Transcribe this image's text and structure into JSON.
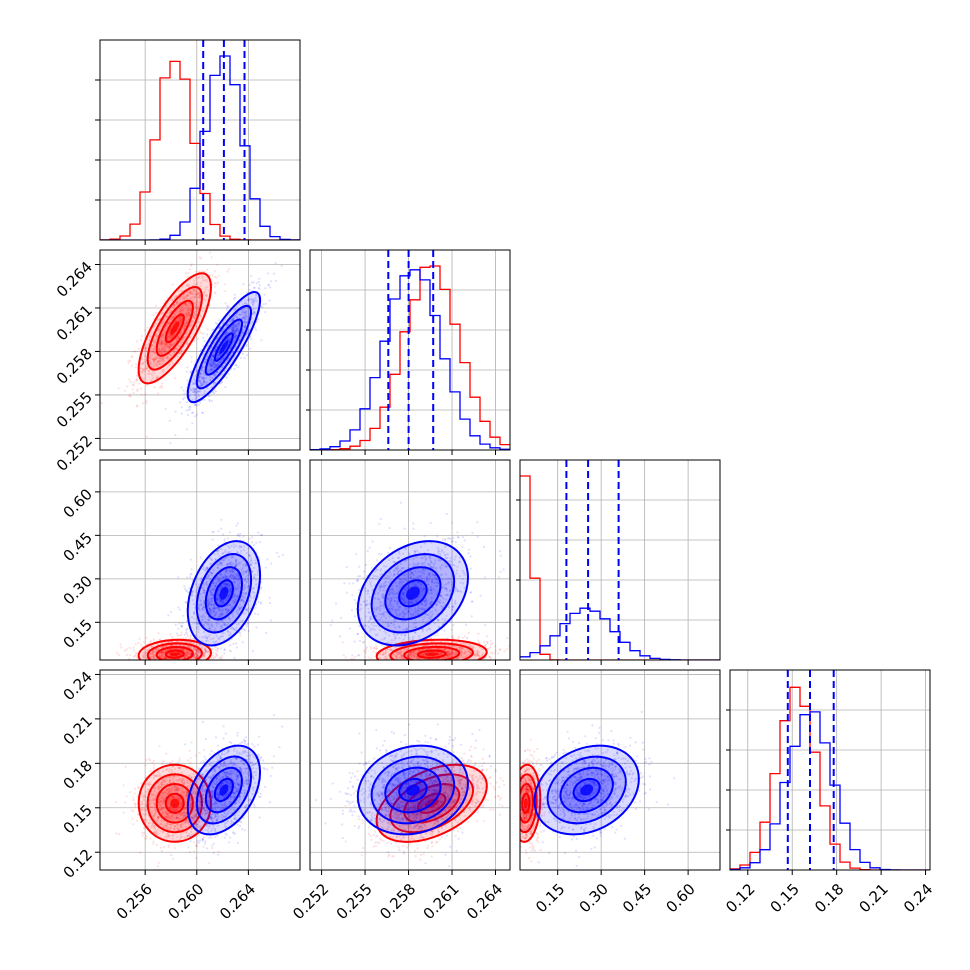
{
  "chart_data": {
    "type": "corner",
    "n_params": 4,
    "series": [
      {
        "name": "red",
        "color": "#ff0000",
        "means": [
          0.2583,
          0.2596,
          0.04,
          0.153
        ],
        "sds": [
          0.0014,
          0.0019,
          0.025,
          0.013
        ],
        "corr": [
          [
            0,
            0,
            0,
            0
          ],
          [
            0.75,
            0,
            0,
            0
          ],
          [
            0.1,
            0.15,
            0,
            0
          ],
          [
            0.0,
            0.45,
            0.1,
            0
          ]
        ],
        "quantiles_shown": false
      },
      {
        "name": "blue",
        "color": "#0000ff",
        "means": [
          0.2621,
          0.2583,
          0.25,
          0.162
        ],
        "sds": [
          0.0014,
          0.0019,
          0.09,
          0.015
        ],
        "corr": [
          [
            0,
            0,
            0,
            0
          ],
          [
            0.85,
            0,
            0,
            0
          ],
          [
            0.35,
            0.3,
            0,
            0
          ],
          [
            0.4,
            0.15,
            0.25,
            0
          ]
        ],
        "quantiles": [
          [
            0.2605,
            0.2621,
            0.2637
          ],
          [
            0.2566,
            0.258,
            0.2597
          ],
          [
            0.18,
            0.255,
            0.36
          ],
          [
            0.147,
            0.162,
            0.178
          ]
        ],
        "quantiles_shown": true
      }
    ],
    "ranges": [
      [
        0.2525,
        0.268
      ],
      [
        0.2512,
        0.265
      ],
      [
        0.02,
        0.71
      ],
      [
        0.108,
        0.243
      ]
    ],
    "ticks": [
      [
        0.256,
        0.26,
        0.264
      ],
      [
        0.252,
        0.255,
        0.258,
        0.261,
        0.264
      ],
      [
        0.15,
        0.3,
        0.45,
        0.6
      ],
      [
        0.12,
        0.15,
        0.18,
        0.21,
        0.24
      ]
    ],
    "tick_labels": [
      [
        "0.256",
        "0.260",
        "0.264"
      ],
      [
        "0.252",
        "0.255",
        "0.258",
        "0.261",
        "0.264"
      ],
      [
        "0.15",
        "0.30",
        "0.45",
        "0.60"
      ],
      [
        "0.12",
        "0.15",
        "0.18",
        "0.21",
        "0.24"
      ]
    ],
    "grid": true,
    "tick_label_rotation_deg": 45
  }
}
